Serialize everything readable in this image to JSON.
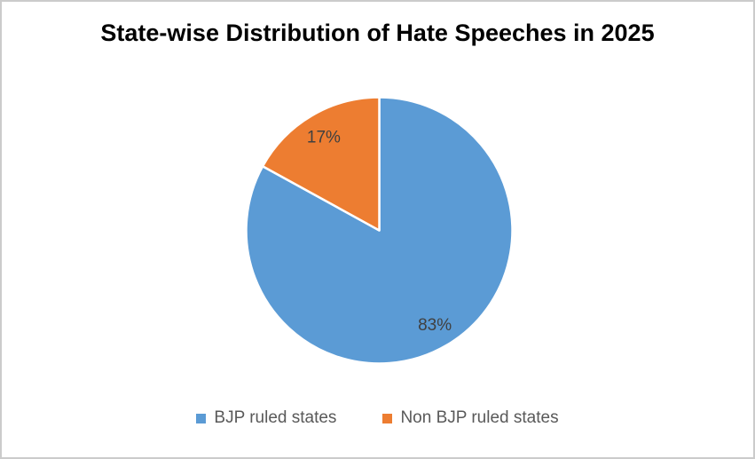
{
  "chart_data": {
    "type": "pie",
    "title": "State-wise Distribution of Hate Speeches in 2025",
    "slices": [
      {
        "label": "BJP ruled states",
        "value": 83,
        "display": "83%",
        "color": "#5B9BD5"
      },
      {
        "label": "Non BJP ruled states",
        "value": 17,
        "display": "17%",
        "color": "#ED7D31"
      }
    ],
    "start_angle_deg": 0,
    "direction": "clockwise",
    "labels_shown_as": "percent",
    "label_position": "inside",
    "legend_position": "bottom",
    "grid": false,
    "title_color": "#000000",
    "label_color": "#404040",
    "legend_text_color": "#595959",
    "background_color": "#FFFFFF",
    "frame_border_color": "#CBCBCB",
    "slice_border_color": "#FFFFFF"
  }
}
